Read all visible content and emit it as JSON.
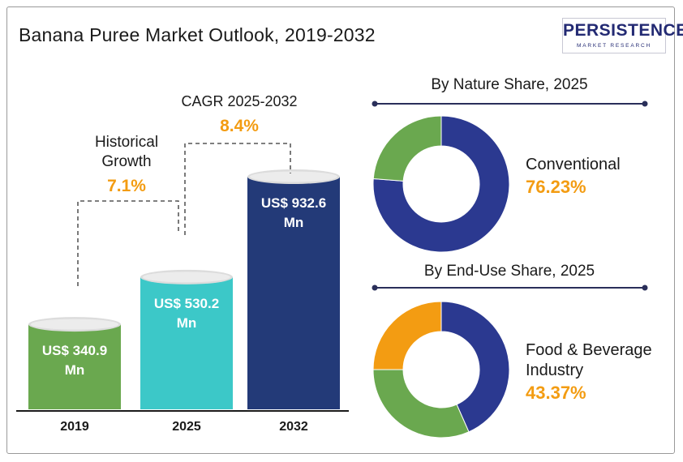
{
  "title": "Banana Puree Market Outlook, 2019-2032",
  "logo": {
    "name": "PERSISTENCE",
    "tagline": "MARKET RESEARCH"
  },
  "colors": {
    "green": "#6aa84f",
    "teal": "#3cc8c8",
    "navy": "#233a78",
    "donut_navy": "#2b3990",
    "orange": "#f39c12",
    "text": "#1a1a1a"
  },
  "annotations": {
    "historical": {
      "label_line1": "Historical",
      "label_line2": "Growth",
      "value": "7.1%"
    },
    "cagr": {
      "label": "CAGR 2025-2032",
      "value": "8.4%"
    }
  },
  "chart_data": [
    {
      "type": "bar",
      "categories": [
        "2019",
        "2025",
        "2032"
      ],
      "values": [
        340.9,
        530.2,
        932.6
      ],
      "data_labels": [
        [
          "US$ 340.9",
          "Mn"
        ],
        [
          "US$ 530.2",
          "Mn"
        ],
        [
          "US$ 932.6",
          "Mn"
        ]
      ],
      "bar_colors": [
        "#6aa84f",
        "#3cc8c8",
        "#233a78"
      ]
    },
    {
      "type": "pie",
      "title": "By Nature Share, 2025",
      "slices": [
        {
          "name": "Conventional",
          "value": 76.23,
          "color": "#2b3990"
        },
        {
          "value": 23.77,
          "color": "#6aa84f"
        }
      ],
      "highlight": {
        "label_lines": [
          "Conventional"
        ],
        "value": "76.23%"
      }
    },
    {
      "type": "pie",
      "title": "By End-Use Share, 2025",
      "slices": [
        {
          "name": "Food & Beverage Industry",
          "value": 43.37,
          "color": "#2b3990"
        },
        {
          "value": 31.63,
          "color": "#6aa84f"
        },
        {
          "value": 25.0,
          "color": "#f39c12"
        }
      ],
      "highlight": {
        "label_lines": [
          "Food & Beverage",
          "Industry"
        ],
        "value": "43.37%"
      }
    }
  ]
}
